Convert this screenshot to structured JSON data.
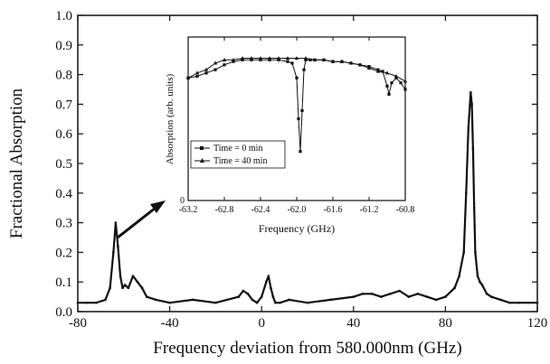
{
  "chart_data": [
    {
      "type": "line",
      "title": "",
      "xlabel": "Frequency deviation from 580.000nm (GHz)",
      "ylabel": "Fractional Absorption",
      "xlim": [
        -80,
        120
      ],
      "ylim": [
        0.0,
        1.0
      ],
      "xticks": [
        -80,
        -40,
        0,
        40,
        80,
        120
      ],
      "yticks": [
        "0.0",
        "0.1",
        "0.2",
        "0.3",
        "0.4",
        "0.5",
        "0.6",
        "0.7",
        "0.8",
        "0.9",
        "1.0"
      ],
      "grid": false,
      "series": [
        {
          "x": [
            -80,
            -76,
            -72,
            -68,
            -66,
            -64.5,
            -63.5,
            -62.5,
            -61.5,
            -60.5,
            -59.5,
            -58,
            -56,
            -54,
            -52,
            -50,
            -46,
            -40,
            -30,
            -20,
            -10,
            -8,
            -6,
            -4,
            -2,
            0,
            2,
            3,
            4,
            5,
            6,
            8,
            12,
            20,
            30,
            40,
            44,
            48,
            52,
            56,
            60,
            64,
            68,
            72,
            76,
            80,
            84,
            86,
            88,
            89,
            90,
            91,
            91.5,
            92,
            92.5,
            93,
            94,
            95,
            96,
            98,
            100,
            104,
            108,
            112,
            116,
            120
          ],
          "y": [
            0.03,
            0.03,
            0.03,
            0.04,
            0.08,
            0.2,
            0.3,
            0.22,
            0.12,
            0.08,
            0.09,
            0.08,
            0.12,
            0.1,
            0.08,
            0.05,
            0.04,
            0.03,
            0.04,
            0.03,
            0.05,
            0.07,
            0.06,
            0.04,
            0.03,
            0.05,
            0.1,
            0.12,
            0.08,
            0.05,
            0.03,
            0.03,
            0.04,
            0.03,
            0.04,
            0.05,
            0.06,
            0.06,
            0.05,
            0.06,
            0.07,
            0.05,
            0.06,
            0.05,
            0.04,
            0.05,
            0.08,
            0.12,
            0.2,
            0.4,
            0.62,
            0.74,
            0.7,
            0.55,
            0.35,
            0.2,
            0.12,
            0.1,
            0.09,
            0.06,
            0.05,
            0.04,
            0.03,
            0.03,
            0.03,
            0.03
          ]
        }
      ]
    },
    {
      "type": "line",
      "title": "",
      "xlabel": "Frequency (GHz)",
      "ylabel": "Absorption (arb. units)",
      "xlim": [
        -63.2,
        -60.8
      ],
      "ylim": [
        0,
        1
      ],
      "xticks": [
        "-63.2",
        "-62.8",
        "-62.4",
        "-62.0",
        "-61.6",
        "-61.2",
        "-60.8"
      ],
      "yticks": [
        "0"
      ],
      "grid": false,
      "legend": "bottom-left",
      "series": [
        {
          "name": "Time = 0 min",
          "marker": "square",
          "x": [
            -63.2,
            -63.1,
            -63.0,
            -62.9,
            -62.8,
            -62.7,
            -62.6,
            -62.5,
            -62.4,
            -62.3,
            -62.2,
            -62.1,
            -62.05,
            -62.0,
            -61.98,
            -61.96,
            -61.94,
            -61.92,
            -61.9,
            -61.85,
            -61.8,
            -61.7,
            -61.6,
            -61.5,
            -61.4,
            -61.3,
            -61.2,
            -61.1,
            -61.05,
            -61.0,
            -60.98,
            -60.95,
            -60.9,
            -60.85,
            -60.8
          ],
          "y": [
            0.75,
            0.76,
            0.78,
            0.8,
            0.83,
            0.85,
            0.86,
            0.86,
            0.86,
            0.86,
            0.86,
            0.85,
            0.84,
            0.75,
            0.5,
            0.3,
            0.55,
            0.8,
            0.86,
            0.86,
            0.86,
            0.86,
            0.85,
            0.85,
            0.84,
            0.83,
            0.82,
            0.8,
            0.79,
            0.7,
            0.65,
            0.72,
            0.75,
            0.72,
            0.68
          ]
        },
        {
          "name": "Time = 40 min",
          "marker": "triangle",
          "x": [
            -63.2,
            -63.1,
            -63.0,
            -62.9,
            -62.8,
            -62.7,
            -62.6,
            -62.5,
            -62.4,
            -62.3,
            -62.2,
            -62.1,
            -62.0,
            -61.9,
            -61.8,
            -61.7,
            -61.6,
            -61.5,
            -61.4,
            -61.3,
            -61.2,
            -61.1,
            -61.0,
            -60.9,
            -60.8
          ],
          "y": [
            0.75,
            0.78,
            0.8,
            0.84,
            0.86,
            0.86,
            0.87,
            0.87,
            0.87,
            0.87,
            0.87,
            0.87,
            0.87,
            0.87,
            0.86,
            0.86,
            0.85,
            0.85,
            0.84,
            0.83,
            0.81,
            0.79,
            0.78,
            0.76,
            0.73
          ]
        }
      ],
      "annotations": [
        "arrow pointing from the -62 GHz peak of the main plot to the inset"
      ]
    }
  ]
}
